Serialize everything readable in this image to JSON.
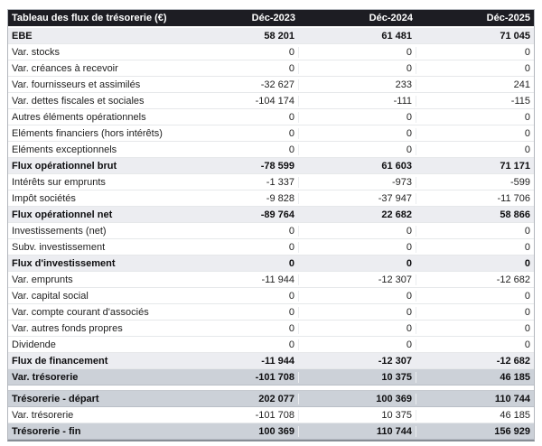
{
  "chart_data": {
    "type": "table",
    "title": "Tableau des flux de trésorerie (€)",
    "columns": [
      "Déc-2023",
      "Déc-2024",
      "Déc-2025"
    ],
    "rows": [
      {
        "label": "EBE",
        "style": "section",
        "values": [
          58201,
          61481,
          71045
        ],
        "display": [
          "58 201",
          "61 481",
          "71 045"
        ]
      },
      {
        "label": "Var. stocks",
        "style": "normal",
        "values": [
          0,
          0,
          0
        ],
        "display": [
          "0",
          "0",
          "0"
        ]
      },
      {
        "label": "Var. créances à recevoir",
        "style": "normal",
        "values": [
          0,
          0,
          0
        ],
        "display": [
          "0",
          "0",
          "0"
        ]
      },
      {
        "label": "Var. fournisseurs et assimilés",
        "style": "normal",
        "values": [
          -32627,
          233,
          241
        ],
        "display": [
          "-32 627",
          "233",
          "241"
        ]
      },
      {
        "label": "Var. dettes fiscales et sociales",
        "style": "normal",
        "values": [
          -104174,
          -111,
          -115
        ],
        "display": [
          "-104 174",
          "-111",
          "-115"
        ]
      },
      {
        "label": "Autres éléments opérationnels",
        "style": "normal",
        "values": [
          0,
          0,
          0
        ],
        "display": [
          "0",
          "0",
          "0"
        ]
      },
      {
        "label": "Eléments financiers (hors intérêts)",
        "style": "normal",
        "values": [
          0,
          0,
          0
        ],
        "display": [
          "0",
          "0",
          "0"
        ]
      },
      {
        "label": "Eléments exceptionnels",
        "style": "normal",
        "values": [
          0,
          0,
          0
        ],
        "display": [
          "0",
          "0",
          "0"
        ]
      },
      {
        "label": "Flux opérationnel brut",
        "style": "section",
        "values": [
          -78599,
          61603,
          71171
        ],
        "display": [
          "-78 599",
          "61 603",
          "71 171"
        ]
      },
      {
        "label": "Intérêts sur emprunts",
        "style": "normal",
        "values": [
          -1337,
          -973,
          -599
        ],
        "display": [
          "-1 337",
          "-973",
          "-599"
        ]
      },
      {
        "label": "Impôt sociétés",
        "style": "normal",
        "values": [
          -9828,
          -37947,
          -11706
        ],
        "display": [
          "-9 828",
          "-37 947",
          "-11 706"
        ]
      },
      {
        "label": "Flux opérationnel net",
        "style": "section",
        "values": [
          -89764,
          22682,
          58866
        ],
        "display": [
          "-89 764",
          "22 682",
          "58 866"
        ]
      },
      {
        "label": "Investissements (net)",
        "style": "normal",
        "values": [
          0,
          0,
          0
        ],
        "display": [
          "0",
          "0",
          "0"
        ]
      },
      {
        "label": "Subv. investissement",
        "style": "normal",
        "values": [
          0,
          0,
          0
        ],
        "display": [
          "0",
          "0",
          "0"
        ]
      },
      {
        "label": "Flux d'investissement",
        "style": "section",
        "values": [
          0,
          0,
          0
        ],
        "display": [
          "0",
          "0",
          "0"
        ]
      },
      {
        "label": "Var. emprunts",
        "style": "normal",
        "values": [
          -11944,
          -12307,
          -12682
        ],
        "display": [
          "-11 944",
          "-12 307",
          "-12 682"
        ]
      },
      {
        "label": "Var. capital social",
        "style": "normal",
        "values": [
          0,
          0,
          0
        ],
        "display": [
          "0",
          "0",
          "0"
        ]
      },
      {
        "label": "Var. compte courant d'associés",
        "style": "normal",
        "values": [
          0,
          0,
          0
        ],
        "display": [
          "0",
          "0",
          "0"
        ]
      },
      {
        "label": "Var. autres fonds propres",
        "style": "normal",
        "values": [
          0,
          0,
          0
        ],
        "display": [
          "0",
          "0",
          "0"
        ]
      },
      {
        "label": "Dividende",
        "style": "normal",
        "values": [
          0,
          0,
          0
        ],
        "display": [
          "0",
          "0",
          "0"
        ]
      },
      {
        "label": "Flux de financement",
        "style": "section",
        "values": [
          -11944,
          -12307,
          -12682
        ],
        "display": [
          "-11 944",
          "-12 307",
          "-12 682"
        ]
      },
      {
        "label": "Var. trésorerie",
        "style": "total",
        "values": [
          -101708,
          10375,
          46185
        ],
        "display": [
          "-101 708",
          "10 375",
          "46 185"
        ]
      }
    ],
    "summary_rows": [
      {
        "label": "Trésorerie - départ",
        "style": "total",
        "values": [
          202077,
          100369,
          110744
        ],
        "display": [
          "202 077",
          "100 369",
          "110 744"
        ]
      },
      {
        "label": "Var. trésorerie",
        "style": "normal",
        "values": [
          -101708,
          10375,
          46185
        ],
        "display": [
          "-101 708",
          "10 375",
          "46 185"
        ]
      },
      {
        "label": "Trésorerie - fin",
        "style": "total",
        "values": [
          100369,
          110744,
          156929
        ],
        "display": [
          "100 369",
          "110 744",
          "156 929"
        ]
      }
    ]
  },
  "colors": {
    "header_bg": "#1d1d23",
    "header_text": "#ffffff",
    "section_row_bg": "#ecedf1",
    "total_row_bg": "#ccd1d8",
    "row_text": "#222222",
    "row_border": "#e6e8ea",
    "outer_border": "#b3b7bd"
  }
}
